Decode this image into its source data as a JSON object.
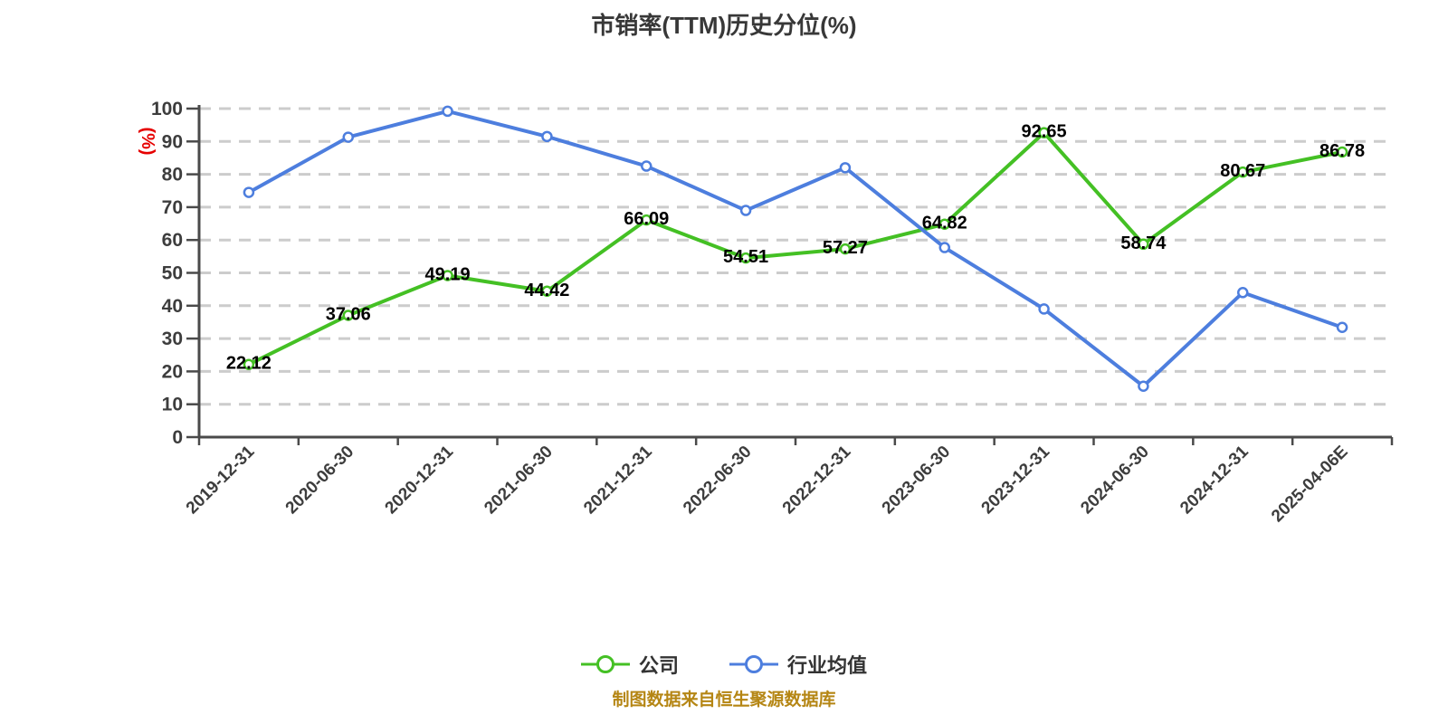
{
  "title": "市销率(TTM)历史分位(%)",
  "footer": "制图数据来自恒生聚源数据库",
  "y_axis": {
    "unit": "(%)",
    "ticks": [
      0,
      10,
      20,
      30,
      40,
      50,
      60,
      70,
      80,
      90,
      100
    ]
  },
  "colors": {
    "company": "#44c024",
    "industry": "#4d7ede",
    "grid": "#cccccc",
    "axis": "#4a4a4a",
    "tick_label": "#3d3d3d",
    "title": "#383838",
    "data_label": "#000000",
    "legend_text": "#333333",
    "footer": "#b58614",
    "y_unit": "#e60000"
  },
  "chart_data": {
    "type": "line",
    "title": "市销率(TTM)历史分位(%)",
    "xlabel": "",
    "ylabel": "(%)",
    "ylim": [
      0,
      100
    ],
    "grid": "horizontal-dashed",
    "legend_position": "bottom",
    "categories": [
      "2019-12-31",
      "2020-06-30",
      "2020-12-31",
      "2021-06-30",
      "2021-12-31",
      "2022-06-30",
      "2022-12-31",
      "2023-06-30",
      "2023-12-31",
      "2024-06-30",
      "2024-12-31",
      "2025-04-06E"
    ],
    "series": [
      {
        "name": "公司",
        "color": "#44c024",
        "point_labels": true,
        "values": [
          22.12,
          37.06,
          49.19,
          44.42,
          66.09,
          54.51,
          57.27,
          64.82,
          92.65,
          58.74,
          80.67,
          86.78
        ]
      },
      {
        "name": "行业均值",
        "color": "#4d7ede",
        "point_labels": false,
        "values": [
          74.5,
          91.3,
          99.2,
          91.5,
          82.5,
          69.0,
          82.0,
          57.7,
          39.0,
          15.5,
          44.0,
          33.4
        ]
      }
    ]
  }
}
